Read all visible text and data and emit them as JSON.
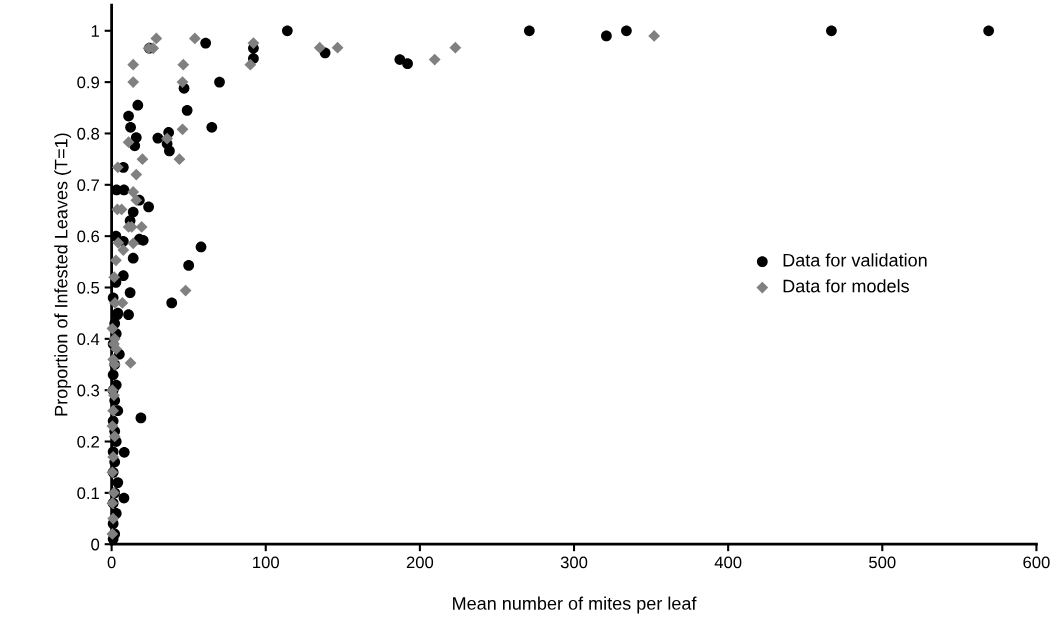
{
  "chart_data": {
    "type": "scatter",
    "xlabel": "Mean number of mites per leaf",
    "ylabel": "Proportion of Infested Leaves (T=1)",
    "xlim": [
      0,
      600
    ],
    "xticks": [
      0,
      100,
      200,
      300,
      400,
      500,
      600
    ],
    "ylim": [
      0,
      1.05
    ],
    "yticks": [
      0,
      0.1,
      0.2,
      0.3,
      0.4,
      0.5,
      0.6,
      0.7,
      0.8,
      0.9,
      1
    ],
    "grid": false,
    "legend": "right",
    "series": [
      {
        "name": "Data for validation",
        "color": "#000000",
        "marker": "circle",
        "x": [
          114,
          61,
          24.5,
          92,
          92,
          70,
          47,
          17,
          49,
          11,
          12.3,
          65,
          37,
          16,
          15,
          30,
          36,
          37.5,
          7.6,
          3.2,
          8,
          18,
          24,
          14,
          12,
          2.8,
          7.6,
          18,
          20.5,
          58,
          14,
          50,
          7.6,
          2.8,
          12,
          39,
          3.7,
          11,
          19,
          8.2,
          8,
          138.5,
          187,
          192,
          271,
          321,
          334,
          467,
          569,
          1,
          2,
          1,
          3,
          1,
          2,
          4,
          1,
          2,
          1,
          3,
          2,
          1,
          4,
          2,
          1,
          3,
          1,
          2,
          5,
          1,
          3,
          2,
          4,
          1
        ],
        "values": [
          1.0,
          0.976,
          0.966,
          0.966,
          0.946,
          0.9,
          0.888,
          0.855,
          0.845,
          0.834,
          0.812,
          0.812,
          0.802,
          0.792,
          0.776,
          0.791,
          0.78,
          0.766,
          0.734,
          0.69,
          0.69,
          0.67,
          0.657,
          0.647,
          0.63,
          0.6,
          0.59,
          0.594,
          0.592,
          0.579,
          0.557,
          0.543,
          0.523,
          0.51,
          0.49,
          0.47,
          0.447,
          0.447,
          0.246,
          0.179,
          0.09,
          0.957,
          0.944,
          0.936,
          1.0,
          0.99,
          1.0,
          1.0,
          1.0,
          0.01,
          0.02,
          0.04,
          0.06,
          0.08,
          0.1,
          0.12,
          0.14,
          0.16,
          0.18,
          0.2,
          0.22,
          0.24,
          0.26,
          0.28,
          0.3,
          0.31,
          0.33,
          0.35,
          0.37,
          0.39,
          0.41,
          0.43,
          0.45,
          0.48
        ]
      },
      {
        "name": "Data for models",
        "color": "#808080",
        "marker": "diamond",
        "x": [
          29,
          54,
          24,
          27,
          92,
          90,
          14,
          46.5,
          14,
          46,
          46,
          11,
          36,
          20,
          44,
          4,
          16,
          14,
          16,
          3.7,
          6.5,
          11,
          13,
          19.5,
          4.3,
          14,
          7.6,
          2.8,
          1.7,
          48,
          2.2,
          7,
          12.3,
          135,
          146.6,
          209.6,
          223,
          352,
          0.5,
          1,
          0.5,
          1.5,
          0.5,
          1,
          2,
          0.5,
          1,
          1.5,
          0.5,
          2,
          1,
          3,
          1.5,
          2,
          0.5
        ],
        "values": [
          0.985,
          0.985,
          0.966,
          0.966,
          0.976,
          0.934,
          0.934,
          0.934,
          0.9,
          0.9,
          0.808,
          0.783,
          0.79,
          0.75,
          0.75,
          0.734,
          0.72,
          0.686,
          0.67,
          0.652,
          0.652,
          0.618,
          0.618,
          0.618,
          0.587,
          0.586,
          0.573,
          0.553,
          0.52,
          0.494,
          0.47,
          0.47,
          0.353,
          0.967,
          0.967,
          0.944,
          0.967,
          0.99,
          0.02,
          0.05,
          0.08,
          0.1,
          0.14,
          0.17,
          0.21,
          0.23,
          0.26,
          0.29,
          0.3,
          0.35,
          0.36,
          0.38,
          0.39,
          0.4,
          0.42
        ]
      }
    ]
  }
}
